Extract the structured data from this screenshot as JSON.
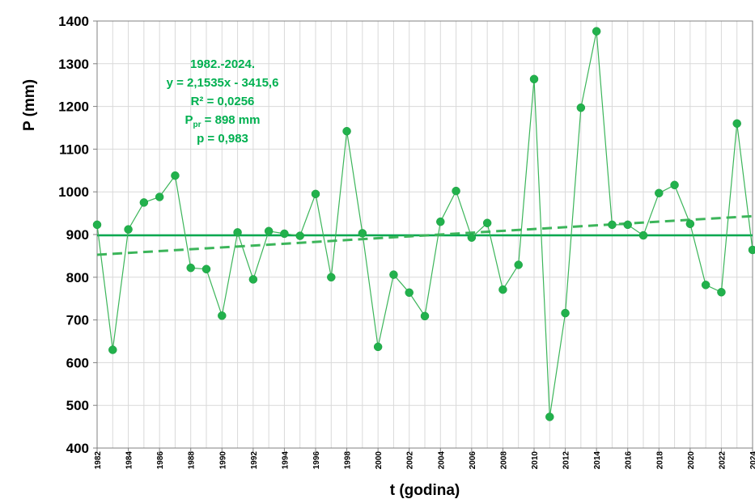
{
  "chart_data": {
    "type": "line",
    "xlabel": "t (godina)",
    "ylabel": "P (mm)",
    "ylim": [
      400,
      1400
    ],
    "xlim": [
      1982,
      2024
    ],
    "y_ticks": [
      400,
      500,
      600,
      700,
      800,
      900,
      1000,
      1100,
      1200,
      1300,
      1400
    ],
    "x_tick_labels": [
      "1982",
      "1984",
      "1986",
      "1988",
      "1990",
      "1992",
      "1994",
      "1996",
      "1998",
      "2000",
      "2002",
      "2004",
      "2006",
      "2008",
      "2010",
      "2012",
      "2014",
      "2016",
      "2018",
      "2020",
      "2022",
      "2024"
    ],
    "grid": true,
    "series": [
      {
        "x": [
          1982,
          1983,
          1984,
          1985,
          1986,
          1987,
          1988,
          1989,
          1990,
          1991,
          1992,
          1993,
          1994,
          1995,
          1996,
          1997,
          1998,
          1999,
          2000,
          2001,
          2002,
          2003,
          2004,
          2005,
          2006,
          2007,
          2008,
          2009,
          2010,
          2011,
          2012,
          2013,
          2014,
          2015,
          2016,
          2017,
          2018,
          2019,
          2020,
          2021,
          2022,
          2023,
          2024
        ],
        "values": [
          923,
          630,
          912,
          975,
          988,
          1038,
          822,
          819,
          710,
          905,
          795,
          908,
          902,
          897,
          995,
          800,
          1142,
          903,
          637,
          806,
          764,
          709,
          930,
          1002,
          893,
          927,
          771,
          829,
          1264,
          473,
          716,
          1197,
          1376,
          923,
          923,
          898,
          997,
          1016,
          925,
          782,
          765,
          1160,
          864
        ],
        "color": "#3cb55a"
      }
    ],
    "trend_line": {
      "slope": 2.1535,
      "intercept": -3415.6,
      "color": "#3cb55a"
    },
    "mean_line": {
      "value": 898,
      "color": "#00a84f"
    },
    "annotation": {
      "lines": [
        {
          "text": "1982.-2024."
        },
        {
          "text": "y = 2,1535x - 3415,6"
        },
        {
          "text": "R² = 0,0256"
        },
        {
          "prefix": "P",
          "subscript": "pr",
          "suffix": " = 898 mm"
        },
        {
          "text": "p = 0,983"
        }
      ],
      "color": "#00b050"
    }
  }
}
